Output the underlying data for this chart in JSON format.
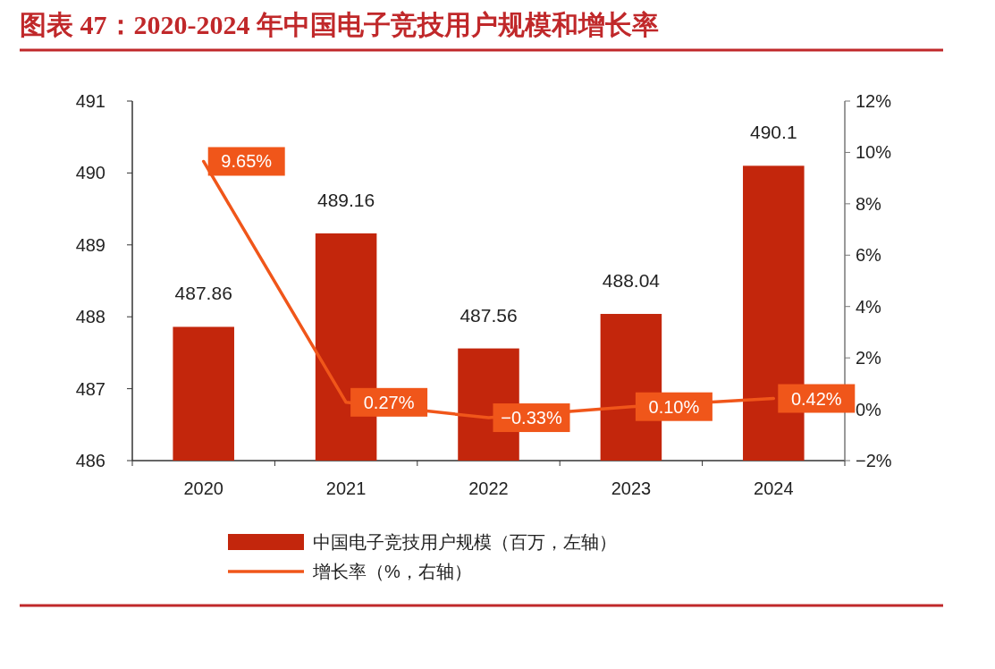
{
  "chart_data": {
    "type": "bar",
    "title": "图表 47：2020-2024 年中国电子竞技用户规模和增长率",
    "categories": [
      "2020",
      "2021",
      "2022",
      "2023",
      "2024"
    ],
    "series": [
      {
        "name": "中国电子竞技用户规模（百万，左轴）",
        "color": "#c3260c",
        "values": [
          487.86,
          489.16,
          487.56,
          488.04,
          490.1
        ],
        "value_labels": [
          "487.86",
          "489.16",
          "487.56",
          "488.04",
          "490.1"
        ]
      },
      {
        "name": "增长率（%，右轴）",
        "type": "line",
        "axis": "y2",
        "color": "#f0561a",
        "values": [
          9.65,
          0.27,
          -0.33,
          0.1,
          0.42
        ],
        "value_labels": [
          "9.65%",
          "0.27%",
          "−0.33%",
          "0.10%",
          "0.42%"
        ]
      }
    ],
    "ylim": [
      486,
      491
    ],
    "yticks": [
      486,
      487,
      488,
      489,
      490,
      491
    ],
    "y2lim": [
      -2,
      12
    ],
    "y2ticks": [
      {
        "value": -2,
        "label": "−2%"
      },
      {
        "value": 0,
        "label": "0%"
      },
      {
        "value": 2,
        "label": "2%"
      },
      {
        "value": 4,
        "label": "4%"
      },
      {
        "value": 6,
        "label": "6%"
      },
      {
        "value": 8,
        "label": "8%"
      },
      {
        "value": 10,
        "label": "10%"
      },
      {
        "value": 12,
        "label": "12%"
      }
    ],
    "legend": "bottom",
    "grid": false,
    "marker": "none",
    "line_style": "solid"
  }
}
